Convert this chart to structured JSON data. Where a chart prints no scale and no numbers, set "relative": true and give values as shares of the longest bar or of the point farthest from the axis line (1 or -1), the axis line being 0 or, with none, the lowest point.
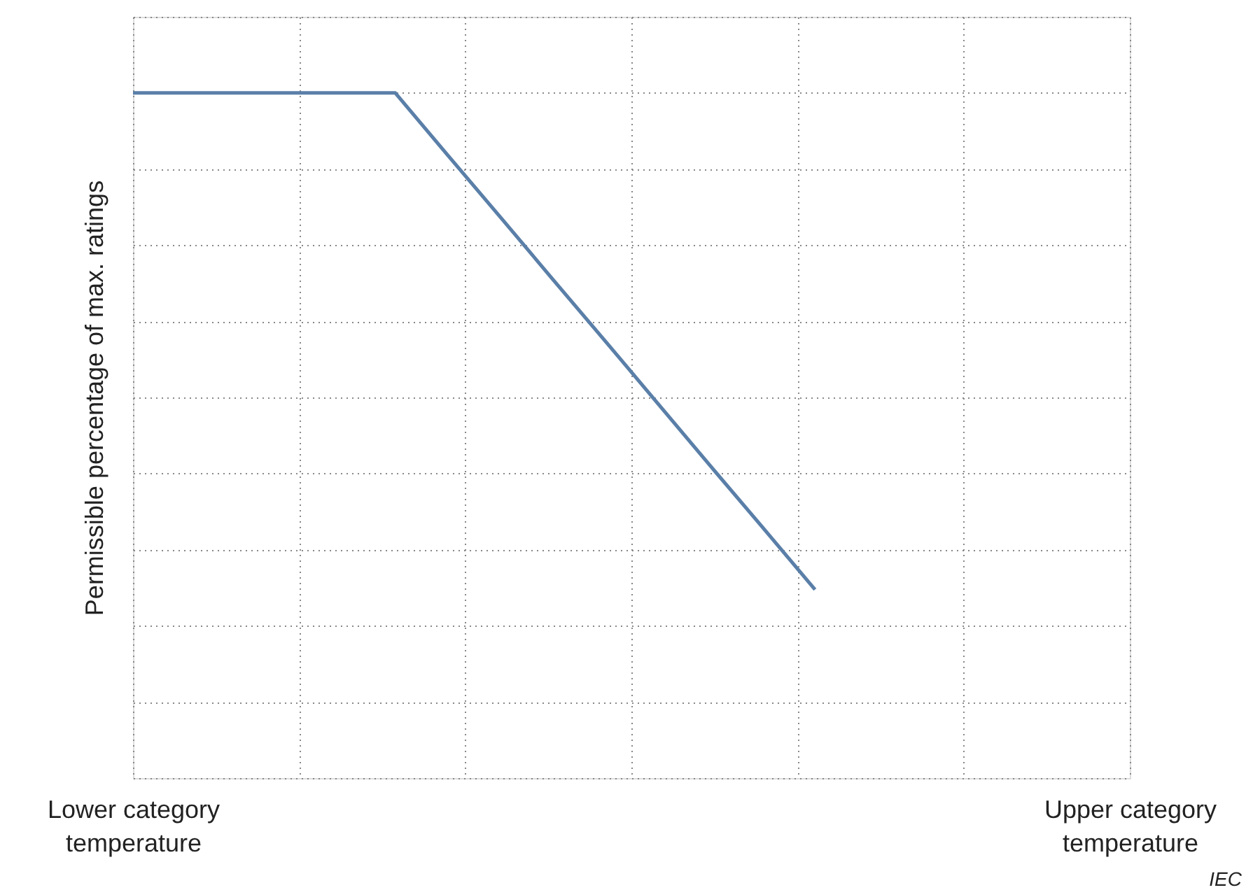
{
  "chart_data": {
    "type": "line",
    "relative": true,
    "ylabel": "Permissible percentage of max. ratings",
    "categories": [
      "Lower category temperature",
      null,
      null,
      null,
      null,
      null,
      null,
      null,
      null,
      null,
      null,
      null,
      null,
      null,
      null,
      null,
      null,
      null,
      null,
      "Upper category temperature"
    ],
    "series": [
      {
        "color": "#5a7fa8",
        "values": [
          1,
          1,
          1,
          1,
          1,
          1,
          0.909,
          0.819,
          0.728,
          0.638,
          0.547,
          0.456,
          0.366,
          0.275,
          null,
          null,
          null,
          null,
          null,
          null
        ]
      }
    ],
    "grid": true,
    "line_style": "solid",
    "annotations": [
      "IEC"
    ]
  }
}
